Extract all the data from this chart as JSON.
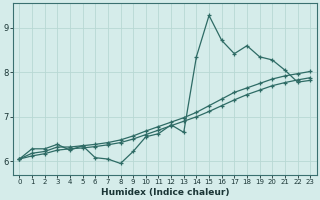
{
  "xlabel": "Humidex (Indice chaleur)",
  "ylabel": "",
  "bg_color": "#d5ecea",
  "grid_color": "#b8d8d4",
  "line_color": "#2e6b65",
  "xlim": [
    -0.5,
    23.5
  ],
  "ylim": [
    5.7,
    9.55
  ],
  "xticks": [
    0,
    1,
    2,
    3,
    4,
    5,
    6,
    7,
    8,
    9,
    10,
    11,
    12,
    13,
    14,
    15,
    16,
    17,
    18,
    19,
    20,
    21,
    22,
    23
  ],
  "yticks": [
    6,
    7,
    8,
    9
  ],
  "line1_x": [
    0,
    1,
    2,
    3,
    4,
    5,
    6,
    7,
    8,
    9,
    10,
    11,
    12,
    13,
    14,
    15,
    16,
    17,
    18,
    19,
    20,
    21,
    22,
    23
  ],
  "line1_y": [
    6.05,
    6.28,
    6.28,
    6.38,
    6.25,
    6.35,
    6.08,
    6.05,
    5.95,
    6.22,
    6.55,
    6.62,
    6.82,
    6.65,
    8.35,
    9.28,
    8.72,
    8.42,
    8.6,
    8.35,
    8.28,
    8.05,
    7.78,
    7.82
  ],
  "line2_x": [
    0,
    1,
    2,
    3,
    4,
    5,
    6,
    7,
    8,
    9,
    10,
    11,
    12,
    13,
    14,
    15,
    16,
    17,
    18,
    19,
    20,
    21,
    22,
    23
  ],
  "line2_y": [
    6.05,
    6.18,
    6.22,
    6.32,
    6.32,
    6.35,
    6.38,
    6.42,
    6.48,
    6.57,
    6.68,
    6.78,
    6.88,
    6.98,
    7.1,
    7.25,
    7.4,
    7.55,
    7.65,
    7.75,
    7.85,
    7.92,
    7.97,
    8.02
  ],
  "line3_x": [
    0,
    1,
    2,
    3,
    4,
    5,
    6,
    7,
    8,
    9,
    10,
    11,
    12,
    13,
    14,
    15,
    16,
    17,
    18,
    19,
    20,
    21,
    22,
    23
  ],
  "line3_y": [
    6.05,
    6.12,
    6.17,
    6.25,
    6.28,
    6.3,
    6.33,
    6.37,
    6.42,
    6.5,
    6.6,
    6.7,
    6.8,
    6.9,
    7.0,
    7.12,
    7.25,
    7.38,
    7.5,
    7.6,
    7.7,
    7.77,
    7.83,
    7.88
  ]
}
